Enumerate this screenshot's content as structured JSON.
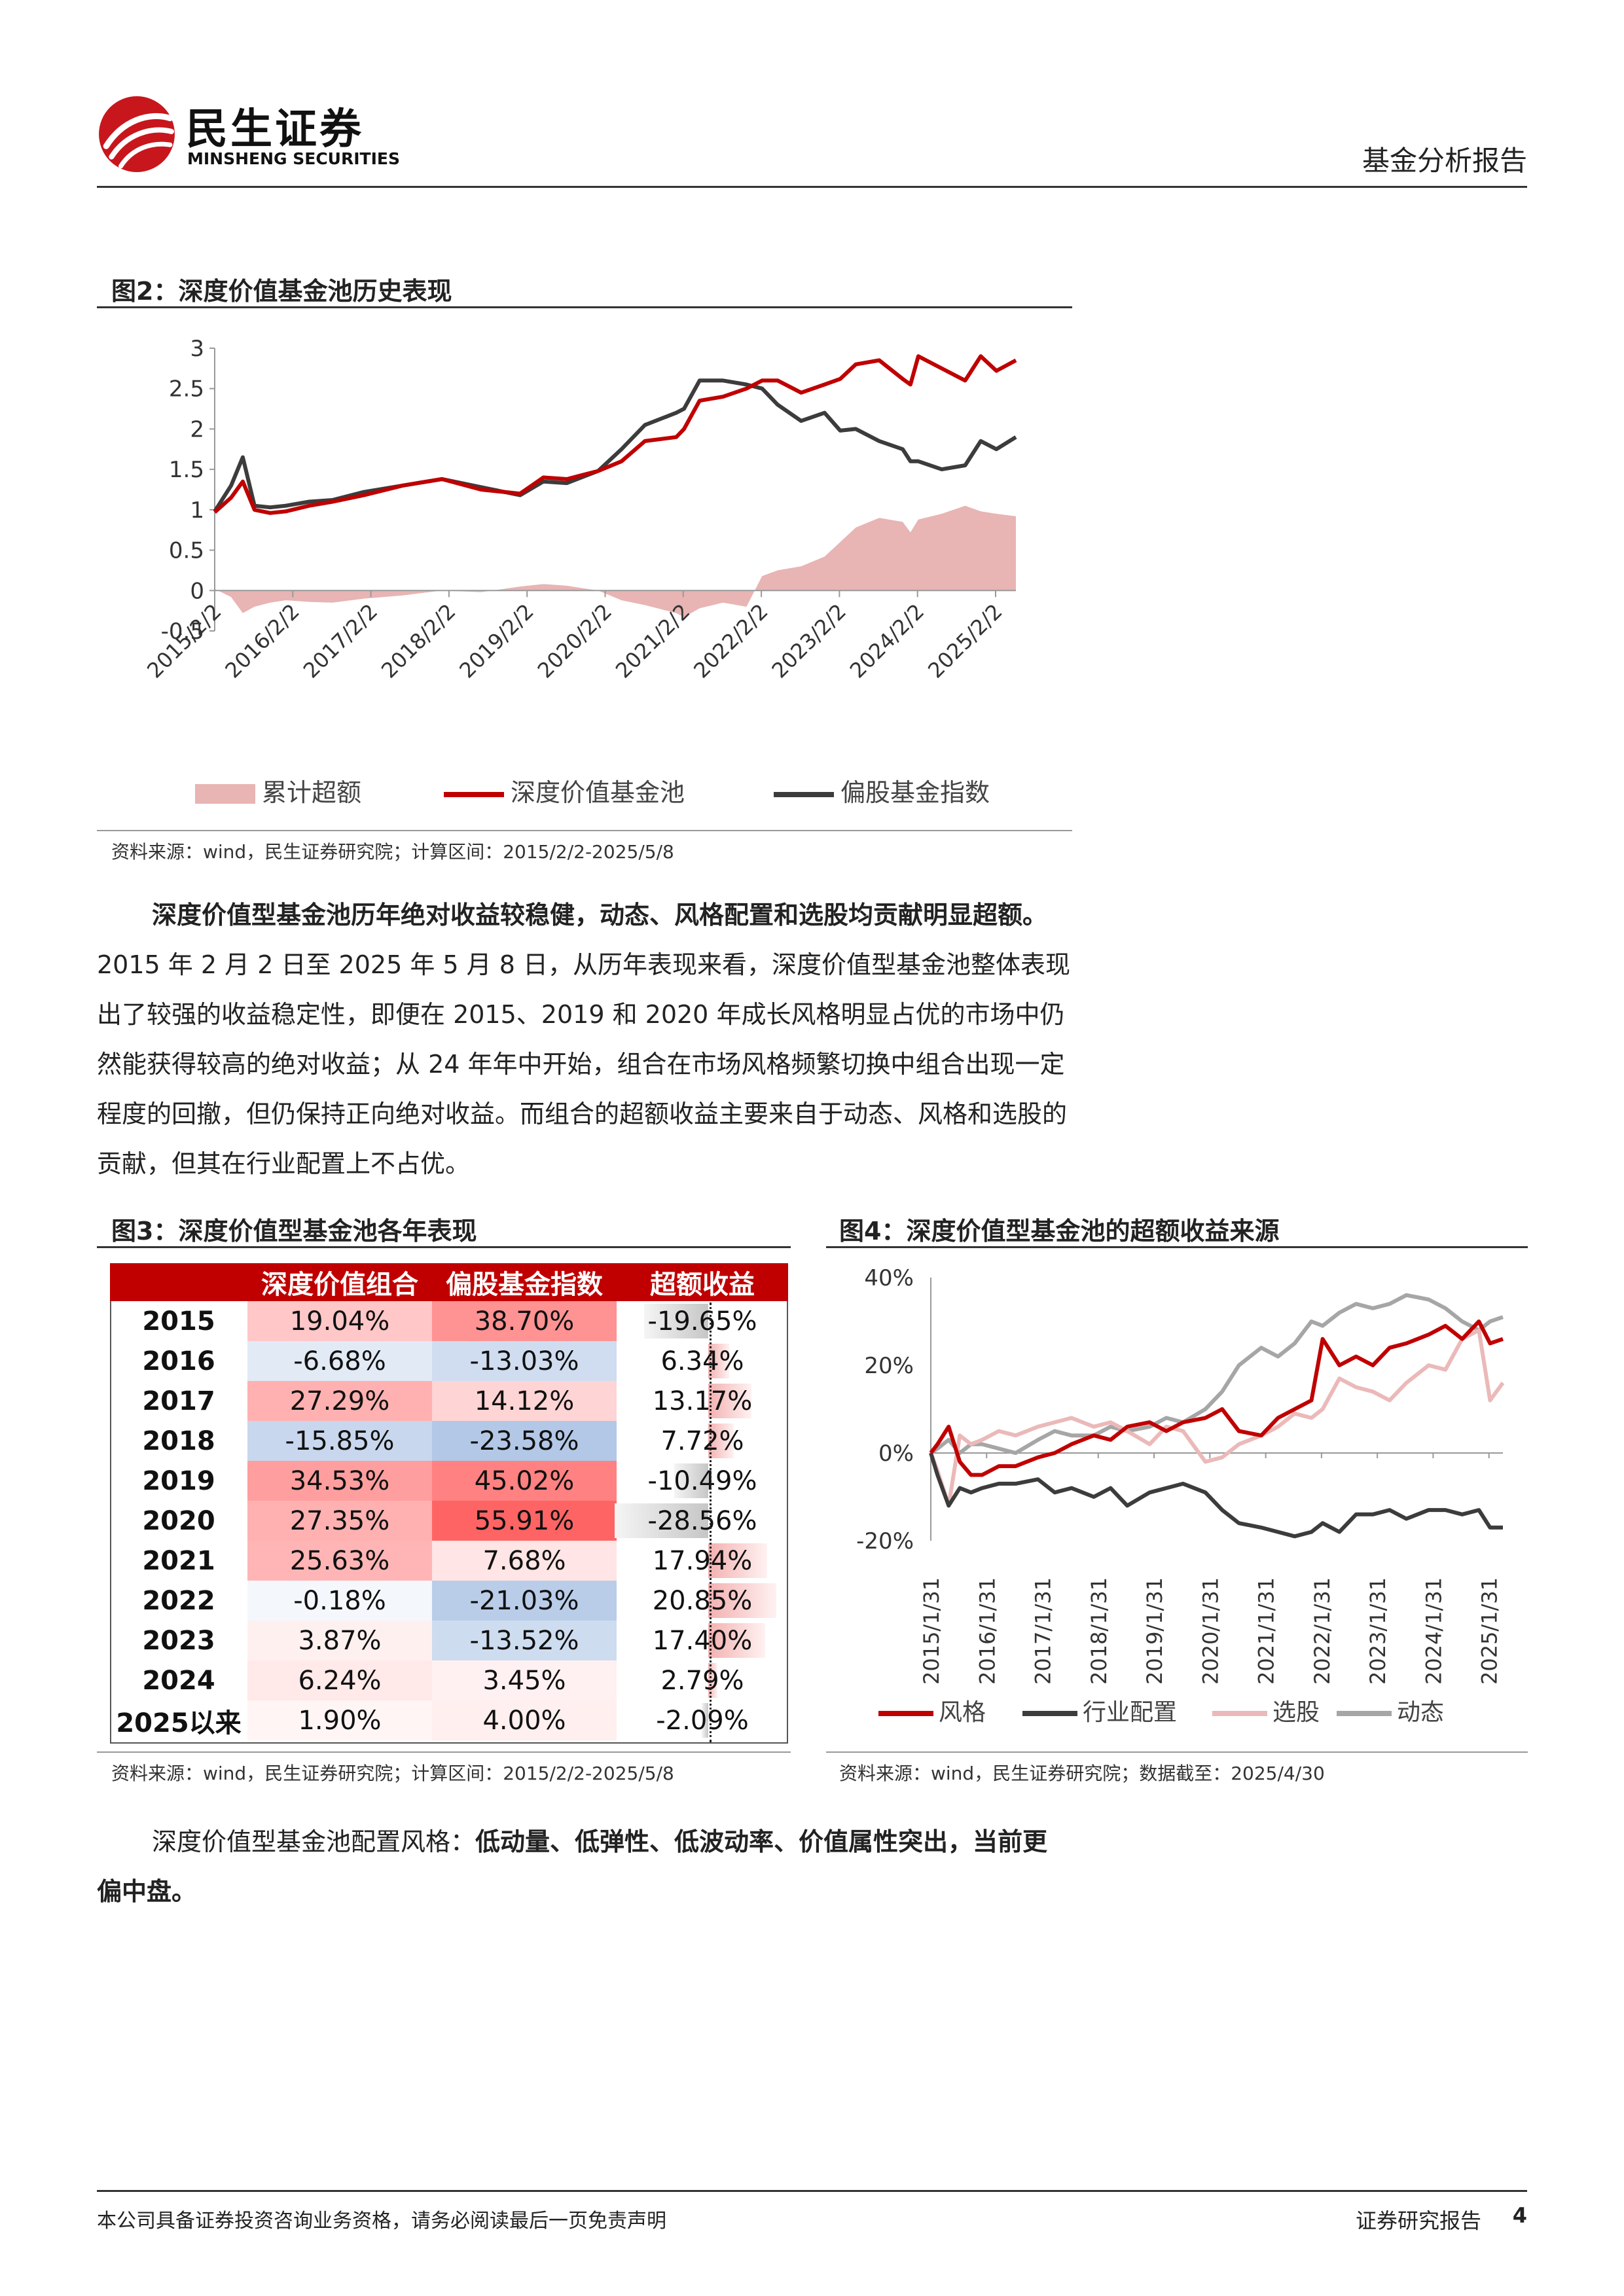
{
  "header": {
    "logo_cn": "民生证券",
    "logo_en": "MINSHENG SECURITIES",
    "report_type": "基金分析报告"
  },
  "figure2": {
    "title": "图2：深度价值基金池历史表现",
    "source": "资料来源：wind，民生证券研究院；计算区间：2015/2/2-2025/5/8",
    "chart_data": {
      "type": "line",
      "title": "",
      "y_ticks": [
        "3",
        "2.5",
        "2",
        "1.5",
        "1",
        "0.5",
        "0",
        "-0.5"
      ],
      "ylim": [
        -0.5,
        3
      ],
      "x_ticks": [
        "2015/2/2",
        "2016/2/2",
        "2017/2/2",
        "2018/2/2",
        "2019/2/2",
        "2020/2/2",
        "2021/2/2",
        "2022/2/2",
        "2023/2/2",
        "2024/2/2",
        "2025/2/2"
      ],
      "x": [
        2015.09,
        2015.3,
        2015.45,
        2015.6,
        2015.8,
        2016.0,
        2016.3,
        2016.6,
        2017.0,
        2017.5,
        2018.0,
        2018.5,
        2019.0,
        2019.3,
        2019.6,
        2020.0,
        2020.3,
        2020.6,
        2021.0,
        2021.1,
        2021.3,
        2021.6,
        2021.9,
        2022.1,
        2022.3,
        2022.6,
        2022.9,
        2023.1,
        2023.3,
        2023.6,
        2023.9,
        2024.0,
        2024.1,
        2024.4,
        2024.7,
        2024.9,
        2025.1,
        2025.35
      ],
      "series": [
        {
          "name": "累计超额",
          "type": "area",
          "color": "#e8b4b4",
          "values": [
            0.02,
            -0.08,
            -0.28,
            -0.2,
            -0.15,
            -0.12,
            -0.14,
            -0.15,
            -0.1,
            -0.06,
            0.0,
            -0.02,
            0.05,
            0.08,
            0.06,
            0.0,
            -0.12,
            -0.18,
            -0.28,
            -0.33,
            -0.22,
            -0.15,
            -0.2,
            0.18,
            0.25,
            0.3,
            0.42,
            0.6,
            0.78,
            0.9,
            0.85,
            0.72,
            0.88,
            0.95,
            1.05,
            0.98,
            0.95,
            0.92
          ]
        },
        {
          "name": "深度价值基金池",
          "type": "line",
          "color": "#c00000",
          "values": [
            0.97,
            1.15,
            1.35,
            1.0,
            0.96,
            0.98,
            1.05,
            1.1,
            1.18,
            1.3,
            1.38,
            1.25,
            1.2,
            1.4,
            1.38,
            1.48,
            1.6,
            1.85,
            1.9,
            2.0,
            2.35,
            2.4,
            2.5,
            2.6,
            2.6,
            2.45,
            2.55,
            2.62,
            2.8,
            2.85,
            2.62,
            2.55,
            2.9,
            2.75,
            2.6,
            2.9,
            2.72,
            2.85
          ]
        },
        {
          "name": "偏股基金指数",
          "type": "line",
          "color": "#3c3c3c",
          "values": [
            0.98,
            1.3,
            1.65,
            1.05,
            1.03,
            1.05,
            1.1,
            1.12,
            1.22,
            1.3,
            1.38,
            1.28,
            1.18,
            1.35,
            1.33,
            1.48,
            1.75,
            2.05,
            2.2,
            2.25,
            2.6,
            2.6,
            2.55,
            2.5,
            2.3,
            2.1,
            2.2,
            1.98,
            2.0,
            1.85,
            1.75,
            1.6,
            1.6,
            1.5,
            1.55,
            1.85,
            1.75,
            1.9
          ]
        }
      ]
    }
  },
  "paragraph1": {
    "bold": "深度价值型基金池历年绝对收益较稳健，动态、风格配置和选股均贡献明显超额。",
    "text": "2015 年 2 月 2 日至 2025 年 5 月 8 日，从历年表现来看，深度价值型基金池整体表现出了较强的收益稳定性，即便在 2015、2019 和 2020 年成长风格明显占优的市场中仍然能获得较高的绝对收益；从 24 年年中开始，组合在市场风格频繁切换中组合出现一定程度的回撤，但仍保持正向绝对收益。而组合的超额收益主要来自于动态、风格和选股的贡献，但其在行业配置上不占优。"
  },
  "figure3": {
    "title": "图3：深度价值型基金池各年表现",
    "source": "资料来源：wind，民生证券研究院；计算区间：2015/2/2-2025/5/8",
    "headers": [
      "",
      "深度价值组合",
      "偏股基金指数",
      "超额收益"
    ],
    "rows": [
      {
        "year": "2015",
        "portfolio": "19.04%",
        "index": "38.70%",
        "excess": "-19.65%",
        "p_val": 19.04,
        "i_val": 38.7,
        "e_val": -19.65
      },
      {
        "year": "2016",
        "portfolio": "-6.68%",
        "index": "-13.03%",
        "excess": "6.34%",
        "p_val": -6.68,
        "i_val": -13.03,
        "e_val": 6.34
      },
      {
        "year": "2017",
        "portfolio": "27.29%",
        "index": "14.12%",
        "excess": "13.17%",
        "p_val": 27.29,
        "i_val": 14.12,
        "e_val": 13.17
      },
      {
        "year": "2018",
        "portfolio": "-15.85%",
        "index": "-23.58%",
        "excess": "7.72%",
        "p_val": -15.85,
        "i_val": -23.58,
        "e_val": 7.72
      },
      {
        "year": "2019",
        "portfolio": "34.53%",
        "index": "45.02%",
        "excess": "-10.49%",
        "p_val": 34.53,
        "i_val": 45.02,
        "e_val": -10.49
      },
      {
        "year": "2020",
        "portfolio": "27.35%",
        "index": "55.91%",
        "excess": "-28.56%",
        "p_val": 27.35,
        "i_val": 55.91,
        "e_val": -28.56
      },
      {
        "year": "2021",
        "portfolio": "25.63%",
        "index": "7.68%",
        "excess": "17.94%",
        "p_val": 25.63,
        "i_val": 7.68,
        "e_val": 17.94
      },
      {
        "year": "2022",
        "portfolio": "-0.18%",
        "index": "-21.03%",
        "excess": "20.85%",
        "p_val": -0.18,
        "i_val": -21.03,
        "e_val": 20.85
      },
      {
        "year": "2023",
        "portfolio": "3.87%",
        "index": "-13.52%",
        "excess": "17.40%",
        "p_val": 3.87,
        "i_val": -13.52,
        "e_val": 17.4
      },
      {
        "year": "2024",
        "portfolio": "6.24%",
        "index": "3.45%",
        "excess": "2.79%",
        "p_val": 6.24,
        "i_val": 3.45,
        "e_val": 2.79
      },
      {
        "year": "2025以来",
        "portfolio": "1.90%",
        "index": "4.00%",
        "excess": "-2.09%",
        "p_val": 1.9,
        "i_val": 4.0,
        "e_val": -2.09
      }
    ]
  },
  "figure4": {
    "title": "图4：深度价值型基金池的超额收益来源",
    "source": "资料来源：wind，民生证券研究院；数据截至：2025/4/30",
    "chart_data": {
      "type": "line",
      "y_ticks": [
        "40%",
        "20%",
        "0%",
        "-20%"
      ],
      "ylim": [
        -0.2,
        0.4
      ],
      "x_ticks": [
        "2015/1/31",
        "2016/1/31",
        "2017/1/31",
        "2018/1/31",
        "2019/1/31",
        "2020/1/31",
        "2021/1/31",
        "2022/1/31",
        "2023/1/31",
        "2024/1/31",
        "2025/1/31"
      ],
      "x": [
        2015.08,
        2015.2,
        2015.4,
        2015.6,
        2015.8,
        2016.0,
        2016.3,
        2016.6,
        2017.0,
        2017.3,
        2017.6,
        2018.0,
        2018.3,
        2018.6,
        2019.0,
        2019.3,
        2019.6,
        2020.0,
        2020.3,
        2020.6,
        2021.0,
        2021.3,
        2021.6,
        2021.9,
        2022.1,
        2022.4,
        2022.7,
        2023.0,
        2023.3,
        2023.6,
        2024.0,
        2024.3,
        2024.6,
        2024.9,
        2025.1,
        2025.33
      ],
      "series": [
        {
          "name": "风格",
          "color": "#c00000",
          "values": [
            0.0,
            0.02,
            0.06,
            -0.02,
            -0.05,
            -0.05,
            -0.03,
            -0.03,
            -0.01,
            0.0,
            0.02,
            0.04,
            0.03,
            0.06,
            0.07,
            0.05,
            0.07,
            0.08,
            0.1,
            0.05,
            0.04,
            0.08,
            0.1,
            0.12,
            0.26,
            0.2,
            0.22,
            0.2,
            0.24,
            0.25,
            0.27,
            0.29,
            0.26,
            0.3,
            0.25,
            0.26
          ]
        },
        {
          "name": "行业配置",
          "color": "#3c3c3c",
          "values": [
            0.0,
            -0.05,
            -0.12,
            -0.08,
            -0.09,
            -0.08,
            -0.07,
            -0.07,
            -0.06,
            -0.09,
            -0.08,
            -0.1,
            -0.08,
            -0.12,
            -0.09,
            -0.08,
            -0.07,
            -0.09,
            -0.13,
            -0.16,
            -0.17,
            -0.18,
            -0.19,
            -0.18,
            -0.16,
            -0.18,
            -0.14,
            -0.14,
            -0.13,
            -0.15,
            -0.13,
            -0.13,
            -0.14,
            -0.13,
            -0.17,
            -0.17
          ]
        },
        {
          "name": "选股",
          "color": "#ebb9b9",
          "values": [
            0.0,
            -0.04,
            -0.12,
            0.04,
            0.02,
            0.03,
            0.05,
            0.04,
            0.06,
            0.07,
            0.08,
            0.06,
            0.07,
            0.05,
            0.02,
            0.06,
            0.05,
            -0.02,
            -0.01,
            0.02,
            0.04,
            0.06,
            0.09,
            0.08,
            0.1,
            0.17,
            0.15,
            0.14,
            0.12,
            0.16,
            0.2,
            0.19,
            0.26,
            0.28,
            0.12,
            0.16
          ]
        },
        {
          "name": "动态",
          "color": "#a6a6a6",
          "values": [
            0.0,
            0.01,
            0.03,
            0.0,
            0.02,
            0.02,
            0.01,
            0.0,
            0.03,
            0.05,
            0.04,
            0.04,
            0.06,
            0.05,
            0.06,
            0.08,
            0.07,
            0.1,
            0.14,
            0.2,
            0.24,
            0.22,
            0.25,
            0.3,
            0.29,
            0.32,
            0.34,
            0.33,
            0.34,
            0.36,
            0.35,
            0.33,
            0.3,
            0.28,
            0.3,
            0.31
          ]
        }
      ]
    }
  },
  "paragraph2": {
    "text": "深度价值型基金池配置风格：",
    "bold": "低动量、低弹性、低波动率、价值属性突出，当前更偏中盘。"
  },
  "footer": {
    "disclaimer": "本公司具备证券投资咨询业务资格，请务必阅读最后一页免责声明",
    "report_kind": "证券研究报告",
    "page": "4"
  }
}
